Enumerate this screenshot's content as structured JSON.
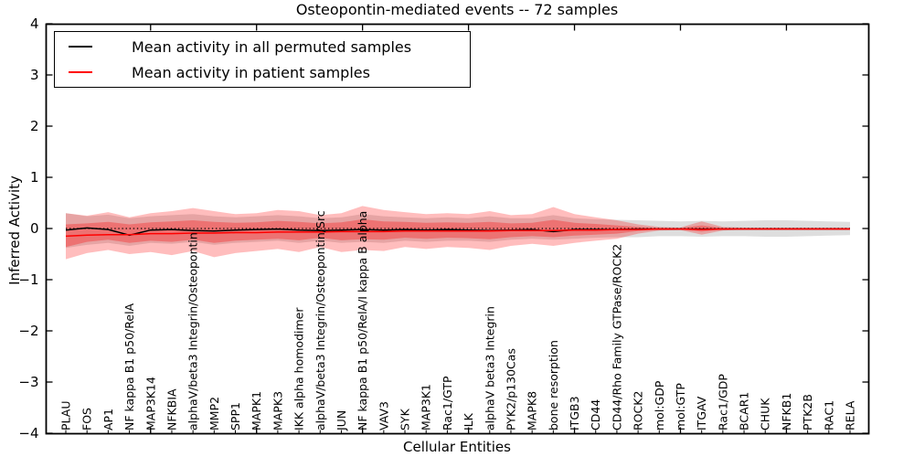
{
  "figure": {
    "background": "#ffffff"
  },
  "header": {
    "title": "Osteopontin-mediated events -- 72 samples"
  },
  "legend": {
    "position": "upper left",
    "items": [
      {
        "label": "Mean activity in all permuted samples",
        "color": "#000000"
      },
      {
        "label": "Mean activity in patient samples",
        "color": "#ff0000"
      }
    ]
  },
  "chart_data": {
    "type": "line",
    "title": "Osteopontin-mediated events -- 72 samples",
    "xlabel": "Cellular Entities",
    "ylabel": "Inferred Activity",
    "ylim": [
      -4,
      4
    ],
    "grid": false,
    "legend_position": "upper left",
    "yticks": [
      {
        "value": 4,
        "label": "4"
      },
      {
        "value": 3,
        "label": "3"
      },
      {
        "value": 2,
        "label": "2"
      },
      {
        "value": 1,
        "label": "1"
      },
      {
        "value": 0,
        "label": "0"
      },
      {
        "value": -1,
        "label": "−1"
      },
      {
        "value": -2,
        "label": "−2"
      },
      {
        "value": -3,
        "label": "−3"
      },
      {
        "value": -4,
        "label": "−4"
      }
    ],
    "x_major_tick_every": 5,
    "categories": [
      "PLAU",
      "FOS",
      "AP1",
      "NF kappa B1 p50/RelA",
      "MAP3K14",
      "NFKBIA",
      "alphaV/beta3 Integrin/Osteopontin",
      "MMP2",
      "SPP1",
      "MAPK1",
      "MAPK3",
      "IKK alpha homodimer",
      "alphaV/beta3 Integrin/Osteopontin/Src",
      "JUN",
      "NF kappa B1 p50/RelA/I kappa B alpha",
      "VAV3",
      "SYK",
      "MAP3K1",
      "Rac1/GTP",
      "ILK",
      "alphaV beta3 Integrin",
      "PYK2/p130Cas",
      "MAPK8",
      "bone resorption",
      "ITGB3",
      "CD44",
      "CD44/Rho Family GTPase/ROCK2",
      "ROCK2",
      "mol:GDP",
      "mol:GTP",
      "ITGAV",
      "Rac1/GDP",
      "BCAR1",
      "CHUK",
      "NFKB1",
      "PTK2B",
      "RAC1",
      "RELA"
    ],
    "zero_line": {
      "y": 0,
      "style": "dotted",
      "color": "#000000"
    },
    "series": [
      {
        "name": "Mean activity in all permuted samples",
        "color": "#000000",
        "values": [
          -0.03,
          0.01,
          -0.02,
          -0.13,
          -0.03,
          -0.02,
          -0.04,
          -0.05,
          -0.03,
          -0.02,
          -0.01,
          -0.03,
          -0.04,
          -0.03,
          -0.02,
          -0.03,
          -0.02,
          -0.03,
          -0.02,
          -0.03,
          -0.04,
          -0.03,
          -0.02,
          -0.06,
          -0.02,
          -0.02,
          -0.02,
          -0.01,
          -0.01,
          -0.01,
          -0.01,
          -0.01,
          -0.01,
          -0.01,
          -0.01,
          -0.01,
          -0.01,
          -0.01
        ]
      },
      {
        "name": "Mean activity in patient samples",
        "color": "#ff0000",
        "values": [
          -0.15,
          -0.13,
          -0.12,
          -0.12,
          -0.1,
          -0.1,
          -0.09,
          -0.09,
          -0.08,
          -0.08,
          -0.07,
          -0.07,
          -0.07,
          -0.06,
          -0.06,
          -0.06,
          -0.05,
          -0.05,
          -0.05,
          -0.05,
          -0.05,
          -0.04,
          -0.04,
          -0.04,
          -0.03,
          -0.03,
          -0.02,
          -0.02,
          -0.01,
          -0.01,
          -0.02,
          -0.01,
          -0.01,
          -0.01,
          -0.01,
          -0.01,
          -0.01,
          -0.01
        ]
      }
    ],
    "bands": [
      {
        "name": "permuted-std-band",
        "color": "#999999",
        "opacity": 0.32,
        "upper": [
          0.3,
          0.24,
          0.27,
          0.2,
          0.24,
          0.26,
          0.28,
          0.24,
          0.22,
          0.24,
          0.26,
          0.24,
          0.2,
          0.22,
          0.28,
          0.24,
          0.22,
          0.2,
          0.22,
          0.2,
          0.24,
          0.2,
          0.2,
          0.26,
          0.2,
          0.18,
          0.17,
          0.16,
          0.15,
          0.14,
          0.15,
          0.14,
          0.15,
          0.16,
          0.16,
          0.15,
          0.14,
          0.13
        ],
        "lower": [
          -0.38,
          -0.32,
          -0.28,
          -0.34,
          -0.28,
          -0.3,
          -0.26,
          -0.32,
          -0.28,
          -0.26,
          -0.24,
          -0.28,
          -0.24,
          -0.28,
          -0.26,
          -0.28,
          -0.24,
          -0.26,
          -0.24,
          -0.24,
          -0.26,
          -0.22,
          -0.2,
          -0.22,
          -0.2,
          -0.18,
          -0.17,
          -0.17,
          -0.15,
          -0.15,
          -0.16,
          -0.15,
          -0.15,
          -0.16,
          -0.16,
          -0.15,
          -0.14,
          -0.13
        ]
      },
      {
        "name": "patient-std-band-outer",
        "color": "#ff0000",
        "opacity": 0.26,
        "upper": [
          0.3,
          0.25,
          0.32,
          0.22,
          0.3,
          0.34,
          0.4,
          0.34,
          0.28,
          0.3,
          0.36,
          0.34,
          0.26,
          0.3,
          0.44,
          0.36,
          0.32,
          0.28,
          0.3,
          0.28,
          0.34,
          0.26,
          0.28,
          0.42,
          0.28,
          0.22,
          0.16,
          0.08,
          0.03,
          0.02,
          0.14,
          0.03,
          0.02,
          0.02,
          0.02,
          0.02,
          0.02,
          0.02
        ],
        "lower": [
          -0.6,
          -0.48,
          -0.42,
          -0.5,
          -0.46,
          -0.52,
          -0.44,
          -0.56,
          -0.48,
          -0.44,
          -0.4,
          -0.46,
          -0.36,
          -0.46,
          -0.42,
          -0.44,
          -0.36,
          -0.4,
          -0.36,
          -0.38,
          -0.42,
          -0.34,
          -0.3,
          -0.34,
          -0.28,
          -0.24,
          -0.2,
          -0.1,
          -0.04,
          -0.03,
          -0.12,
          -0.04,
          -0.02,
          -0.02,
          -0.02,
          -0.02,
          -0.02,
          -0.02
        ]
      },
      {
        "name": "patient-std-band-inner",
        "color": "#ff0000",
        "opacity": 0.3,
        "upper": [
          0.08,
          0.1,
          0.13,
          0.08,
          0.12,
          0.14,
          0.16,
          0.13,
          0.11,
          0.12,
          0.15,
          0.13,
          0.1,
          0.12,
          0.18,
          0.14,
          0.13,
          0.11,
          0.12,
          0.11,
          0.13,
          0.1,
          0.11,
          0.17,
          0.11,
          0.09,
          0.06,
          0.03,
          0.01,
          0.01,
          0.06,
          0.01,
          0.01,
          0.01,
          0.01,
          0.01,
          0.01,
          0.01
        ],
        "lower": [
          -0.36,
          -0.26,
          -0.22,
          -0.28,
          -0.24,
          -0.26,
          -0.22,
          -0.28,
          -0.24,
          -0.22,
          -0.2,
          -0.23,
          -0.18,
          -0.23,
          -0.21,
          -0.22,
          -0.18,
          -0.2,
          -0.18,
          -0.19,
          -0.21,
          -0.17,
          -0.15,
          -0.17,
          -0.14,
          -0.12,
          -0.1,
          -0.05,
          -0.02,
          -0.02,
          -0.06,
          -0.02,
          -0.01,
          -0.01,
          -0.01,
          -0.01,
          -0.01,
          -0.01
        ]
      }
    ]
  }
}
